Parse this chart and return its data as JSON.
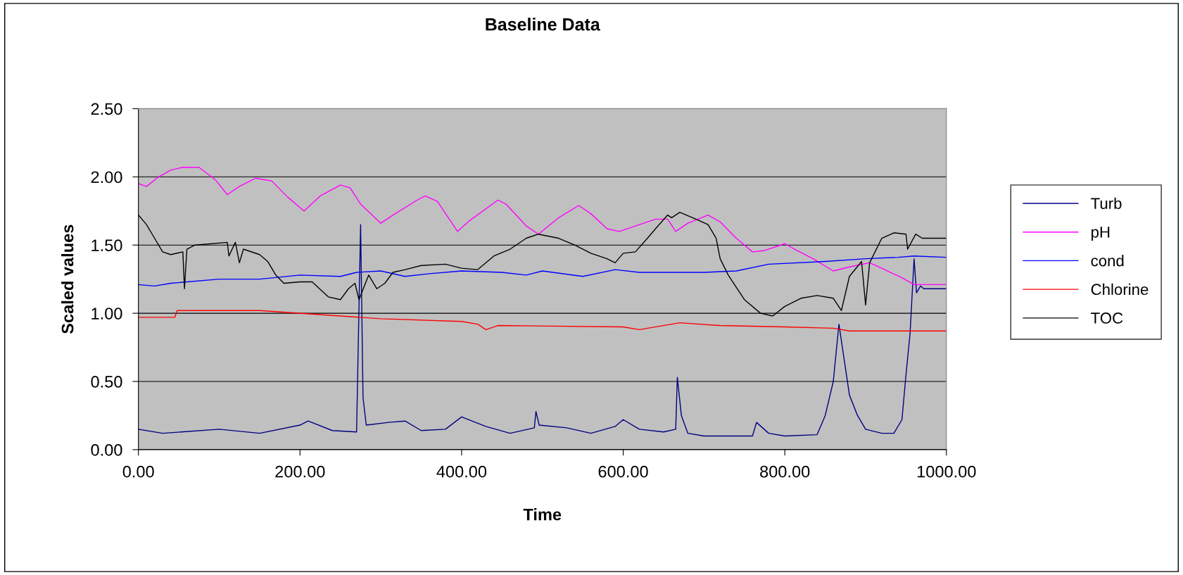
{
  "chart_data": {
    "type": "line",
    "title": "Baseline Data",
    "xlabel": "Time",
    "ylabel": "Scaled values",
    "xlim": [
      0,
      1000
    ],
    "ylim": [
      0,
      2.5
    ],
    "xticks": [
      {
        "value": 0,
        "label": "0.00"
      },
      {
        "value": 200,
        "label": "200.00"
      },
      {
        "value": 400,
        "label": "400.00"
      },
      {
        "value": 600,
        "label": "600.00"
      },
      {
        "value": 800,
        "label": "800.00"
      },
      {
        "value": 1000,
        "label": "1000.00"
      }
    ],
    "yticks": [
      {
        "value": 0,
        "label": "0.00"
      },
      {
        "value": 0.5,
        "label": "0.50"
      },
      {
        "value": 1,
        "label": "1.00"
      },
      {
        "value": 1.5,
        "label": "1.50"
      },
      {
        "value": 2,
        "label": "2.00"
      },
      {
        "value": 2.5,
        "label": "2.50"
      }
    ],
    "grid": "y",
    "legend": "right",
    "marker": "none",
    "line_style": "solid",
    "series": [
      {
        "name": "Turb",
        "color": "#000080",
        "x": [
          0,
          30,
          100,
          150,
          200,
          210,
          240,
          270,
          275,
          278,
          282,
          310,
          330,
          350,
          380,
          400,
          430,
          460,
          490,
          492,
          496,
          530,
          560,
          590,
          600,
          620,
          650,
          665,
          667,
          672,
          680,
          700,
          760,
          765,
          780,
          800,
          840,
          850,
          860,
          867,
          872,
          880,
          890,
          900,
          920,
          935,
          945,
          950,
          955,
          960,
          963,
          968,
          972,
          1000
        ],
        "values": [
          0.15,
          0.12,
          0.15,
          0.12,
          0.18,
          0.21,
          0.14,
          0.13,
          1.65,
          0.38,
          0.18,
          0.2,
          0.21,
          0.14,
          0.15,
          0.24,
          0.17,
          0.12,
          0.16,
          0.28,
          0.18,
          0.16,
          0.12,
          0.17,
          0.22,
          0.15,
          0.13,
          0.15,
          0.53,
          0.25,
          0.12,
          0.1,
          0.1,
          0.2,
          0.12,
          0.1,
          0.11,
          0.25,
          0.5,
          0.92,
          0.72,
          0.4,
          0.25,
          0.15,
          0.12,
          0.12,
          0.22,
          0.55,
          0.85,
          1.4,
          1.15,
          1.2,
          1.18,
          1.18
        ]
      },
      {
        "name": "pH",
        "color": "#ff00ff",
        "x": [
          0,
          10,
          25,
          40,
          55,
          75,
          95,
          110,
          125,
          145,
          165,
          185,
          205,
          225,
          250,
          262,
          275,
          300,
          315,
          345,
          355,
          370,
          395,
          410,
          445,
          455,
          480,
          495,
          520,
          545,
          560,
          580,
          595,
          615,
          640,
          655,
          665,
          680,
          705,
          720,
          740,
          760,
          775,
          800,
          815,
          835,
          860,
          880,
          905,
          920,
          945,
          960,
          1000
        ],
        "values": [
          1.95,
          1.93,
          2.0,
          2.05,
          2.07,
          2.07,
          1.98,
          1.87,
          1.93,
          1.99,
          1.97,
          1.85,
          1.75,
          1.86,
          1.94,
          1.92,
          1.8,
          1.66,
          1.72,
          1.83,
          1.86,
          1.82,
          1.6,
          1.68,
          1.83,
          1.8,
          1.64,
          1.58,
          1.7,
          1.79,
          1.73,
          1.62,
          1.6,
          1.64,
          1.69,
          1.69,
          1.6,
          1.66,
          1.72,
          1.67,
          1.55,
          1.45,
          1.46,
          1.51,
          1.46,
          1.4,
          1.31,
          1.34,
          1.37,
          1.33,
          1.26,
          1.21,
          1.21
        ]
      },
      {
        "name": "cond",
        "color": "#0000ff",
        "x": [
          0,
          20,
          40,
          100,
          150,
          200,
          250,
          270,
          300,
          330,
          360,
          400,
          450,
          480,
          500,
          550,
          590,
          620,
          700,
          740,
          780,
          850,
          900,
          940,
          960,
          1000
        ],
        "values": [
          1.21,
          1.2,
          1.22,
          1.25,
          1.25,
          1.28,
          1.27,
          1.3,
          1.31,
          1.27,
          1.29,
          1.31,
          1.3,
          1.28,
          1.31,
          1.27,
          1.32,
          1.3,
          1.3,
          1.31,
          1.36,
          1.38,
          1.4,
          1.41,
          1.42,
          1.41
        ]
      },
      {
        "name": "Chlorine",
        "color": "#ff0000",
        "x": [
          0,
          45,
          48,
          150,
          250,
          300,
          400,
          420,
          430,
          445,
          600,
          620,
          670,
          720,
          800,
          860,
          880,
          1000
        ],
        "values": [
          0.97,
          0.97,
          1.02,
          1.02,
          0.98,
          0.96,
          0.94,
          0.92,
          0.88,
          0.91,
          0.9,
          0.88,
          0.93,
          0.91,
          0.9,
          0.89,
          0.87,
          0.87
        ]
      },
      {
        "name": "TOC",
        "color": "#000000",
        "x": [
          0,
          10,
          20,
          30,
          40,
          55,
          57,
          60,
          70,
          110,
          112,
          120,
          125,
          130,
          150,
          160,
          170,
          180,
          200,
          215,
          235,
          250,
          260,
          268,
          273,
          285,
          295,
          305,
          315,
          330,
          350,
          380,
          400,
          420,
          440,
          460,
          480,
          495,
          520,
          540,
          560,
          580,
          590,
          600,
          615,
          630,
          640,
          655,
          660,
          670,
          690,
          705,
          715,
          720,
          730,
          750,
          770,
          785,
          800,
          820,
          840,
          860,
          870,
          880,
          895,
          900,
          905,
          920,
          935,
          950,
          952,
          962,
          970,
          1000
        ],
        "values": [
          1.72,
          1.65,
          1.55,
          1.45,
          1.43,
          1.45,
          1.18,
          1.47,
          1.5,
          1.52,
          1.42,
          1.52,
          1.37,
          1.47,
          1.43,
          1.38,
          1.28,
          1.22,
          1.23,
          1.23,
          1.12,
          1.1,
          1.18,
          1.22,
          1.1,
          1.28,
          1.18,
          1.22,
          1.3,
          1.32,
          1.35,
          1.36,
          1.33,
          1.32,
          1.42,
          1.47,
          1.55,
          1.58,
          1.55,
          1.5,
          1.44,
          1.4,
          1.37,
          1.44,
          1.45,
          1.55,
          1.62,
          1.72,
          1.7,
          1.74,
          1.69,
          1.65,
          1.55,
          1.4,
          1.28,
          1.1,
          1.0,
          0.98,
          1.05,
          1.11,
          1.13,
          1.11,
          1.02,
          1.27,
          1.38,
          1.06,
          1.37,
          1.55,
          1.59,
          1.58,
          1.47,
          1.58,
          1.55,
          1.55
        ]
      }
    ]
  }
}
